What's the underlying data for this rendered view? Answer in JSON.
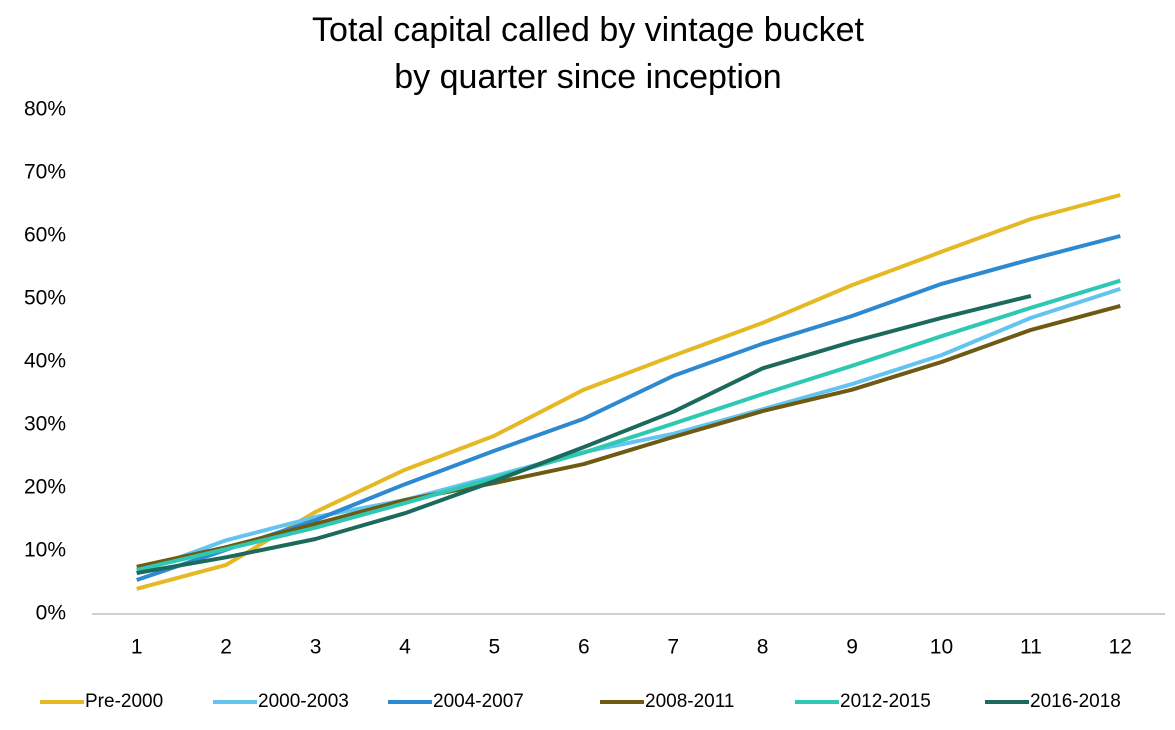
{
  "chart_data": {
    "type": "line",
    "title": [
      "Total capital called by vintage bucket",
      "by quarter since inception"
    ],
    "categories": [
      "1",
      "2",
      "3",
      "4",
      "5",
      "6",
      "7",
      "8",
      "9",
      "10",
      "11",
      "12"
    ],
    "ylim": [
      0,
      80
    ],
    "yticks": [
      {
        "value": 0,
        "label": "0%"
      },
      {
        "value": 10,
        "label": "10%"
      },
      {
        "value": 20,
        "label": "20%"
      },
      {
        "value": 30,
        "label": "30%"
      },
      {
        "value": 40,
        "label": "40%"
      },
      {
        "value": 50,
        "label": "50%"
      },
      {
        "value": 60,
        "label": "60%"
      },
      {
        "value": 70,
        "label": "70%"
      },
      {
        "value": 80,
        "label": "80%"
      }
    ],
    "grid": false,
    "legend": "bottom",
    "series": [
      {
        "name": "Pre-2000",
        "color": "#e6b824",
        "values": [
          4.0,
          7.8,
          16.2,
          22.9,
          28.3,
          35.6,
          41.0,
          46.2,
          52.2,
          57.5,
          62.7,
          66.5
        ]
      },
      {
        "name": "2000-2003",
        "color": "#64c4f0",
        "values": [
          6.5,
          11.7,
          15.4,
          18.1,
          21.9,
          25.7,
          28.6,
          32.5,
          36.5,
          41.1,
          47.0,
          51.6
        ]
      },
      {
        "name": "2004-2007",
        "color": "#2d89d0",
        "values": [
          5.4,
          10.2,
          14.9,
          20.6,
          25.9,
          31.0,
          37.8,
          42.9,
          47.3,
          52.4,
          56.3,
          60.0
        ]
      },
      {
        "name": "2008-2011",
        "color": "#6e5a12",
        "values": [
          7.5,
          10.6,
          14.3,
          18.1,
          20.8,
          23.8,
          28.1,
          32.2,
          35.6,
          40.0,
          45.1,
          48.9
        ]
      },
      {
        "name": "2012-2015",
        "color": "#2ec8b3",
        "values": [
          7.0,
          10.3,
          13.7,
          17.6,
          21.6,
          25.6,
          30.2,
          34.9,
          39.4,
          44.1,
          48.6,
          52.9
        ]
      },
      {
        "name": "2016-2018",
        "color": "#1b6a5d",
        "values": [
          6.5,
          9.0,
          11.9,
          16.0,
          21.1,
          26.5,
          32.1,
          39.0,
          43.2,
          47.0,
          50.5,
          null
        ]
      }
    ]
  }
}
